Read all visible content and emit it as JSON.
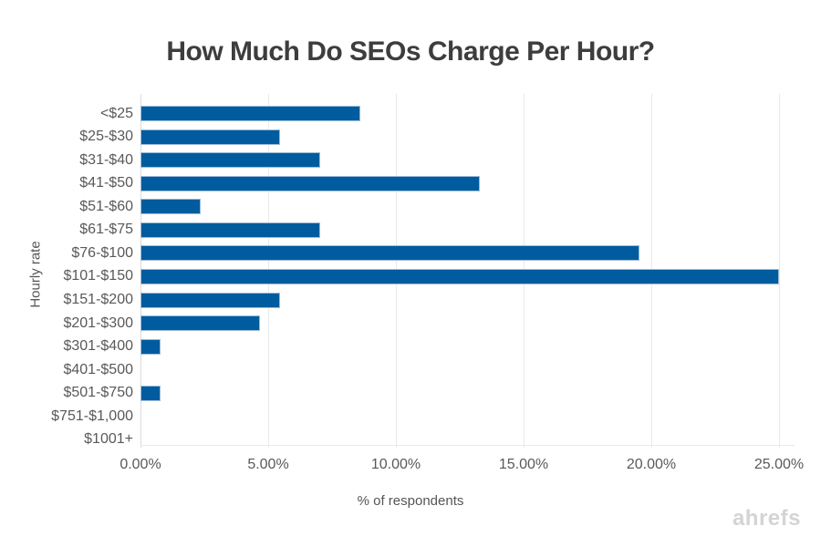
{
  "title": "How Much Do SEOs Charge Per Hour?",
  "watermark": "ahrefs",
  "chart_data": {
    "type": "bar",
    "orientation": "horizontal",
    "title": "How Much Do SEOs Charge Per Hour?",
    "xlabel": "% of respondents",
    "ylabel": "Hourly rate",
    "categories": [
      "<$25",
      "$25-$30",
      "$31-$40",
      "$41-$50",
      "$51-$60",
      "$61-$75",
      "$76-$100",
      "$101-$150",
      "$151-$200",
      "$201-$300",
      "$301-$400",
      "$401-$500",
      "$501-$750",
      "$751-$1,000",
      "$1001+"
    ],
    "values": [
      8.59,
      5.47,
      7.03,
      13.28,
      2.34,
      7.03,
      19.53,
      25.0,
      5.47,
      4.69,
      0.78,
      0,
      0.78,
      0,
      0
    ],
    "xlim": [
      0,
      25
    ],
    "x_ticks": [
      "0.00%",
      "5.00%",
      "10.00%",
      "15.00%",
      "20.00%",
      "25.00%"
    ],
    "x_tick_values": [
      0,
      5,
      10,
      15,
      20,
      25
    ],
    "grid": "vertical",
    "legend": "none",
    "colors": {
      "bar_fill": "#005c9e",
      "bar_border": "#9dbcd9",
      "gridline": "#e9e9e9",
      "axis_line": "#dcdcdc",
      "title_text": "#3d3d3d",
      "tick_text": "#595959",
      "watermark": "#d4d4d4"
    }
  }
}
